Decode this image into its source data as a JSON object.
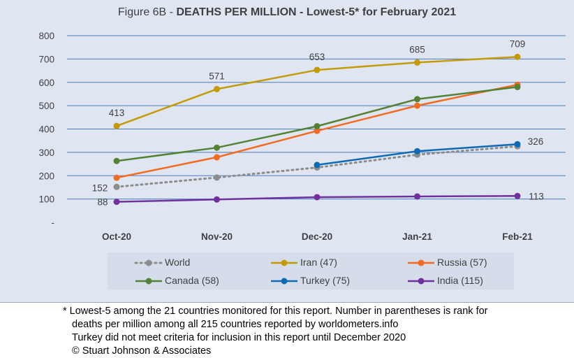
{
  "title": {
    "prefix": "Figure 6B - ",
    "bold": "DEATHS PER MILLION - Lowest-5* for February 2021"
  },
  "chart_data": {
    "type": "line",
    "categories": [
      "Oct-20",
      "Nov-20",
      "Dec-20",
      "Jan-21",
      "Feb-21"
    ],
    "ylim": [
      0,
      800
    ],
    "yticks": [
      "-",
      "100",
      "200",
      "300",
      "400",
      "500",
      "600",
      "700",
      "800"
    ],
    "grid": true,
    "legend_position": "bottom",
    "series": [
      {
        "name": "World",
        "color": "#8c8c8c",
        "dashed": true,
        "values": [
          152,
          192,
          235,
          290,
          326
        ]
      },
      {
        "name": "Iran (47)",
        "color": "#c49b06",
        "values": [
          413,
          571,
          653,
          685,
          709
        ]
      },
      {
        "name": "Russia (57)",
        "color": "#f26b22",
        "values": [
          191,
          279,
          392,
          500,
          590
        ]
      },
      {
        "name": "Canada (58)",
        "color": "#548235",
        "values": [
          263,
          320,
          412,
          528,
          580
        ]
      },
      {
        "name": "Turkey (75)",
        "color": "#0f6ab4",
        "values": [
          null,
          null,
          246,
          305,
          335
        ]
      },
      {
        "name": "India (115)",
        "color": "#7030a0",
        "values": [
          88,
          98,
          108,
          111,
          113
        ]
      }
    ],
    "data_labels": [
      {
        "series": "Iran (47)",
        "index": 0,
        "text": "413"
      },
      {
        "series": "Iran (47)",
        "index": 1,
        "text": "571"
      },
      {
        "series": "Iran (47)",
        "index": 2,
        "text": "653"
      },
      {
        "series": "Iran (47)",
        "index": 3,
        "text": "685"
      },
      {
        "series": "Iran (47)",
        "index": 4,
        "text": "709"
      },
      {
        "series": "World",
        "index": 0,
        "text": "152"
      },
      {
        "series": "World",
        "index": 4,
        "text": "326"
      },
      {
        "series": "India (115)",
        "index": 0,
        "text": "88"
      },
      {
        "series": "India (115)",
        "index": 4,
        "text": "113"
      }
    ]
  },
  "footnote": [
    "* Lowest-5 among the 21 countries monitored for this report. Number in parentheses is rank for",
    "deaths per million among all 215 countries reported by worldometers.info",
    "Turkey did not meet criteria for inclusion in this report until December 2020",
    "© Stuart Johnson & Associates"
  ]
}
